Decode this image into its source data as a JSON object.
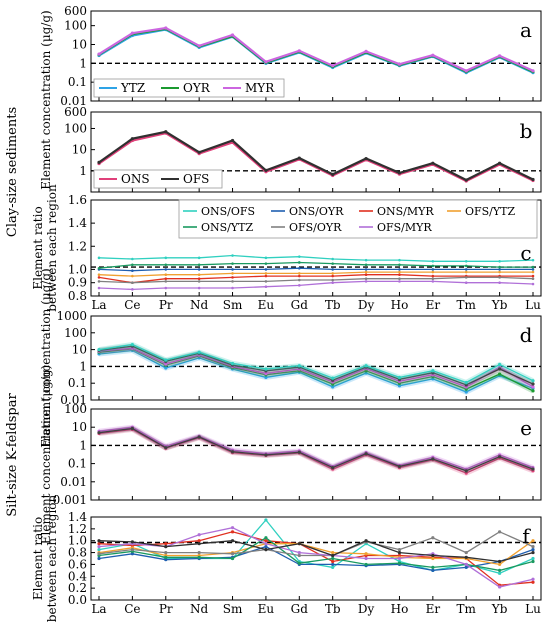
{
  "figure": {
    "section_labels": [
      "Clay-size sediments",
      "Silt-size K-feldspar"
    ]
  },
  "chart_data": [
    {
      "id": "a",
      "panel_letter": "a",
      "type": "line",
      "y_scale": "log",
      "ylim": [
        0.01,
        600
      ],
      "yticks": [
        "0.01",
        "0.1",
        "1",
        "10",
        "100",
        "600"
      ],
      "ylabel": "Element concentration (μg/g)",
      "reference_line": 1,
      "x": [
        "La",
        "Ce",
        "Pr",
        "Nd",
        "Sm",
        "Eu",
        "Gd",
        "Tb",
        "Dy",
        "Ho",
        "Er",
        "Tm",
        "Yb",
        "Lu"
      ],
      "show_xticklabels": false,
      "legend": {
        "position": "bottom-left",
        "columns": 3
      },
      "series": [
        {
          "name": "YTZ",
          "color": "#2ea3e6",
          "values": [
            2.6,
            30,
            62,
            7,
            26,
            1.0,
            3.8,
            0.6,
            3.5,
            0.75,
            2.3,
            0.32,
            2.1,
            0.32
          ]
        },
        {
          "name": "OYR",
          "color": "#1a9a30",
          "values": [
            2.9,
            36,
            68,
            7.8,
            28,
            1.1,
            4.2,
            0.68,
            3.9,
            0.82,
            2.5,
            0.36,
            2.3,
            0.36
          ]
        },
        {
          "name": "MYR",
          "color": "#cc66e0",
          "values": [
            3.1,
            40,
            75,
            8.5,
            32,
            1.2,
            4.6,
            0.75,
            4.3,
            0.9,
            2.7,
            0.4,
            2.5,
            0.4
          ]
        }
      ]
    },
    {
      "id": "b",
      "panel_letter": "b",
      "type": "line",
      "y_scale": "log",
      "ylim": [
        0.1,
        600
      ],
      "yticks": [
        "1",
        "10",
        "100",
        "600"
      ],
      "ylabel": "",
      "reference_line": 1,
      "x": [
        "La",
        "Ce",
        "Pr",
        "Nd",
        "Sm",
        "Eu",
        "Gd",
        "Tb",
        "Dy",
        "Ho",
        "Er",
        "Tm",
        "Yb",
        "Lu"
      ],
      "show_xticklabels": false,
      "legend": {
        "position": "bottom-left",
        "columns": 2
      },
      "series": [
        {
          "name": "ONS",
          "color": "#e0407a",
          "values": [
            2.2,
            27,
            60,
            6.5,
            22,
            0.9,
            3.5,
            0.6,
            3.3,
            0.7,
            2.0,
            0.33,
            2.0,
            0.35
          ]
        },
        {
          "name": "OFS",
          "color": "#303030",
          "values": [
            2.5,
            33,
            70,
            7.5,
            27,
            1.05,
            4.0,
            0.68,
            3.8,
            0.8,
            2.3,
            0.37,
            2.3,
            0.39
          ]
        }
      ]
    },
    {
      "id": "c",
      "panel_letter": "c",
      "type": "line",
      "y_scale": "linear",
      "ylim": [
        0.8,
        1.6
      ],
      "yticks": [
        "0.8",
        "0.9",
        "1.0",
        "1.2",
        "1.4",
        "1.6"
      ],
      "ylabel": "Element ratio between each region",
      "reference_line": 1.02,
      "x": [
        "La",
        "Ce",
        "Pr",
        "Nd",
        "Sm",
        "Eu",
        "Gd",
        "Tb",
        "Dy",
        "Ho",
        "Er",
        "Tm",
        "Yb",
        "Lu"
      ],
      "show_xticklabels": true,
      "legend": {
        "position": "top-right",
        "columns": 4
      },
      "series": [
        {
          "name": "ONS/OFS",
          "color": "#30d0c0",
          "values": [
            1.1,
            1.09,
            1.1,
            1.1,
            1.12,
            1.1,
            1.11,
            1.09,
            1.08,
            1.08,
            1.07,
            1.07,
            1.07,
            1.08
          ]
        },
        {
          "name": "ONS/OYR",
          "color": "#1f5fb0",
          "values": [
            1.0,
            0.99,
            1.0,
            1.0,
            1.0,
            1.0,
            1.01,
            1.0,
            1.0,
            1.0,
            1.0,
            1.0,
            1.0,
            1.0
          ]
        },
        {
          "name": "ONS/MYR",
          "color": "#e03020",
          "values": [
            0.94,
            0.9,
            0.93,
            0.93,
            0.94,
            0.95,
            0.95,
            0.95,
            0.96,
            0.96,
            0.95,
            0.95,
            0.95,
            0.95
          ]
        },
        {
          "name": "OFS/YTZ",
          "color": "#f0a030",
          "values": [
            0.96,
            0.95,
            0.96,
            0.96,
            0.97,
            0.97,
            0.97,
            0.97,
            0.98,
            0.98,
            0.98,
            0.98,
            0.98,
            0.98
          ]
        },
        {
          "name": "ONS/YTZ",
          "color": "#1a9a60",
          "values": [
            1.01,
            1.04,
            1.04,
            1.04,
            1.05,
            1.05,
            1.06,
            1.05,
            1.04,
            1.04,
            1.03,
            1.03,
            1.02,
            1.02
          ]
        },
        {
          "name": "OFS/OYR",
          "color": "#808080",
          "values": [
            0.91,
            0.9,
            0.91,
            0.91,
            0.91,
            0.91,
            0.92,
            0.92,
            0.93,
            0.93,
            0.93,
            0.94,
            0.94,
            0.93
          ]
        },
        {
          "name": "OFS/MYR",
          "color": "#b070d8",
          "values": [
            0.86,
            0.85,
            0.86,
            0.86,
            0.86,
            0.87,
            0.88,
            0.9,
            0.91,
            0.91,
            0.91,
            0.9,
            0.9,
            0.89
          ]
        }
      ]
    },
    {
      "id": "d",
      "panel_letter": "d",
      "type": "line",
      "y_scale": "log",
      "ylim": [
        0.01,
        1000
      ],
      "yticks": [
        "0.01",
        "0.1",
        "1",
        "10",
        "100",
        "1000"
      ],
      "ylabel": "Element concentration (μg/g)",
      "reference_line": 1,
      "x": [
        "La",
        "Ce",
        "Pr",
        "Nd",
        "Sm",
        "Eu",
        "Gd",
        "Tb",
        "Dy",
        "Ho",
        "Er",
        "Tm",
        "Yb",
        "Lu"
      ],
      "show_xticklabels": false,
      "series": [
        {
          "name": "",
          "color": "#2ea3e6",
          "values": [
            5.5,
            9,
            0.8,
            3.2,
            0.7,
            0.22,
            0.45,
            0.06,
            0.4,
            0.07,
            0.18,
            0.03,
            0.28,
            0.05
          ]
        },
        {
          "name": "",
          "color": "#1a9a30",
          "values": [
            7,
            11,
            1.2,
            4.2,
            0.85,
            0.32,
            0.55,
            0.09,
            0.55,
            0.1,
            0.25,
            0.045,
            0.35,
            0.035
          ]
        },
        {
          "name": "",
          "color": "#cc66e0",
          "values": [
            8,
            12,
            1.4,
            4.8,
            1.0,
            0.38,
            0.7,
            0.12,
            0.75,
            0.13,
            0.32,
            0.06,
            0.9,
            0.06
          ]
        },
        {
          "name": "",
          "color": "#404040",
          "values": [
            9,
            16,
            2.0,
            6,
            1.2,
            0.55,
            0.9,
            0.15,
            0.9,
            0.17,
            0.42,
            0.08,
            0.7,
            0.09
          ]
        },
        {
          "name": "",
          "color": "#30d0c0",
          "values": [
            10,
            20,
            2.4,
            7,
            1.5,
            0.7,
            1.1,
            0.2,
            1.1,
            0.22,
            0.55,
            0.11,
            1.3,
            0.14
          ]
        }
      ]
    },
    {
      "id": "e",
      "panel_letter": "e",
      "type": "line",
      "y_scale": "log",
      "ylim": [
        0.001,
        100
      ],
      "yticks": [
        "0.001",
        "0.01",
        "0.1",
        "1",
        "10",
        "100"
      ],
      "ylabel": "Element concentration (μg/g)",
      "reference_line": 1,
      "x": [
        "La",
        "Ce",
        "Pr",
        "Nd",
        "Sm",
        "Eu",
        "Gd",
        "Tb",
        "Dy",
        "Ho",
        "Er",
        "Tm",
        "Yb",
        "Lu"
      ],
      "show_xticklabels": false,
      "series": [
        {
          "name": "",
          "color": "#e0407a",
          "values": [
            4.5,
            7.5,
            0.7,
            2.6,
            0.4,
            0.28,
            0.38,
            0.05,
            0.3,
            0.06,
            0.16,
            0.03,
            0.2,
            0.04
          ]
        },
        {
          "name": "",
          "color": "#cc66e0",
          "values": [
            6,
            10,
            0.9,
            3.2,
            0.55,
            0.35,
            0.5,
            0.07,
            0.4,
            0.08,
            0.22,
            0.05,
            0.3,
            0.06
          ]
        },
        {
          "name": "",
          "color": "#404040",
          "values": [
            5,
            8.5,
            0.75,
            2.9,
            0.45,
            0.3,
            0.42,
            0.06,
            0.35,
            0.07,
            0.18,
            0.04,
            0.24,
            0.05
          ]
        }
      ]
    },
    {
      "id": "f",
      "panel_letter": "f",
      "type": "line",
      "y_scale": "linear",
      "ylim": [
        0.0,
        1.4
      ],
      "yticks": [
        "0.0",
        "0.2",
        "0.4",
        "0.6",
        "0.8",
        "1.0",
        "1.2",
        "1.4"
      ],
      "ylabel": "Element ratio between each region",
      "reference_line": 0.97,
      "x": [
        "La",
        "Ce",
        "Pr",
        "Nd",
        "Sm",
        "Eu",
        "Gd",
        "Tb",
        "Dy",
        "Ho",
        "Er",
        "Tm",
        "Yb",
        "Lu"
      ],
      "show_xticklabels": true,
      "series": [
        {
          "name": "",
          "color": "#30d0c0",
          "values": [
            0.85,
            0.95,
            0.7,
            0.7,
            0.7,
            1.35,
            0.65,
            0.55,
            0.95,
            0.65,
            0.5,
            0.6,
            0.45,
            0.7
          ]
        },
        {
          "name": "",
          "color": "#1f5fb0",
          "values": [
            0.7,
            0.78,
            0.68,
            0.7,
            0.72,
            0.9,
            0.6,
            0.6,
            0.58,
            0.6,
            0.5,
            0.55,
            0.65,
            0.85
          ]
        },
        {
          "name": "",
          "color": "#e03020",
          "values": [
            0.95,
            0.92,
            0.95,
            1.0,
            1.15,
            1.0,
            0.95,
            0.65,
            0.75,
            0.75,
            0.72,
            0.7,
            0.25,
            0.3
          ]
        },
        {
          "name": "",
          "color": "#f0a030",
          "values": [
            0.8,
            0.88,
            0.75,
            0.75,
            0.8,
            0.95,
            0.95,
            0.8,
            0.78,
            0.72,
            0.7,
            0.7,
            0.6,
            1.0
          ]
        },
        {
          "name": "",
          "color": "#1a9a60",
          "values": [
            0.75,
            0.82,
            0.72,
            0.72,
            0.7,
            1.05,
            0.62,
            0.7,
            0.6,
            0.62,
            0.55,
            0.6,
            0.5,
            0.65
          ]
        },
        {
          "name": "",
          "color": "#808080",
          "values": [
            0.78,
            0.85,
            0.8,
            0.8,
            0.78,
            0.85,
            0.75,
            0.75,
            0.98,
            0.85,
            1.05,
            0.8,
            1.15,
            0.9
          ]
        },
        {
          "name": "",
          "color": "#b070d8",
          "values": [
            0.9,
            0.95,
            0.9,
            1.1,
            1.22,
            0.95,
            0.8,
            0.75,
            0.7,
            0.7,
            0.78,
            0.6,
            0.22,
            0.35
          ]
        },
        {
          "name": "",
          "color": "#303030",
          "values": [
            1.0,
            0.98,
            0.9,
            0.95,
            1.0,
            0.85,
            0.95,
            0.75,
            1.0,
            0.8,
            0.75,
            0.72,
            0.65,
            0.8
          ]
        }
      ]
    }
  ]
}
